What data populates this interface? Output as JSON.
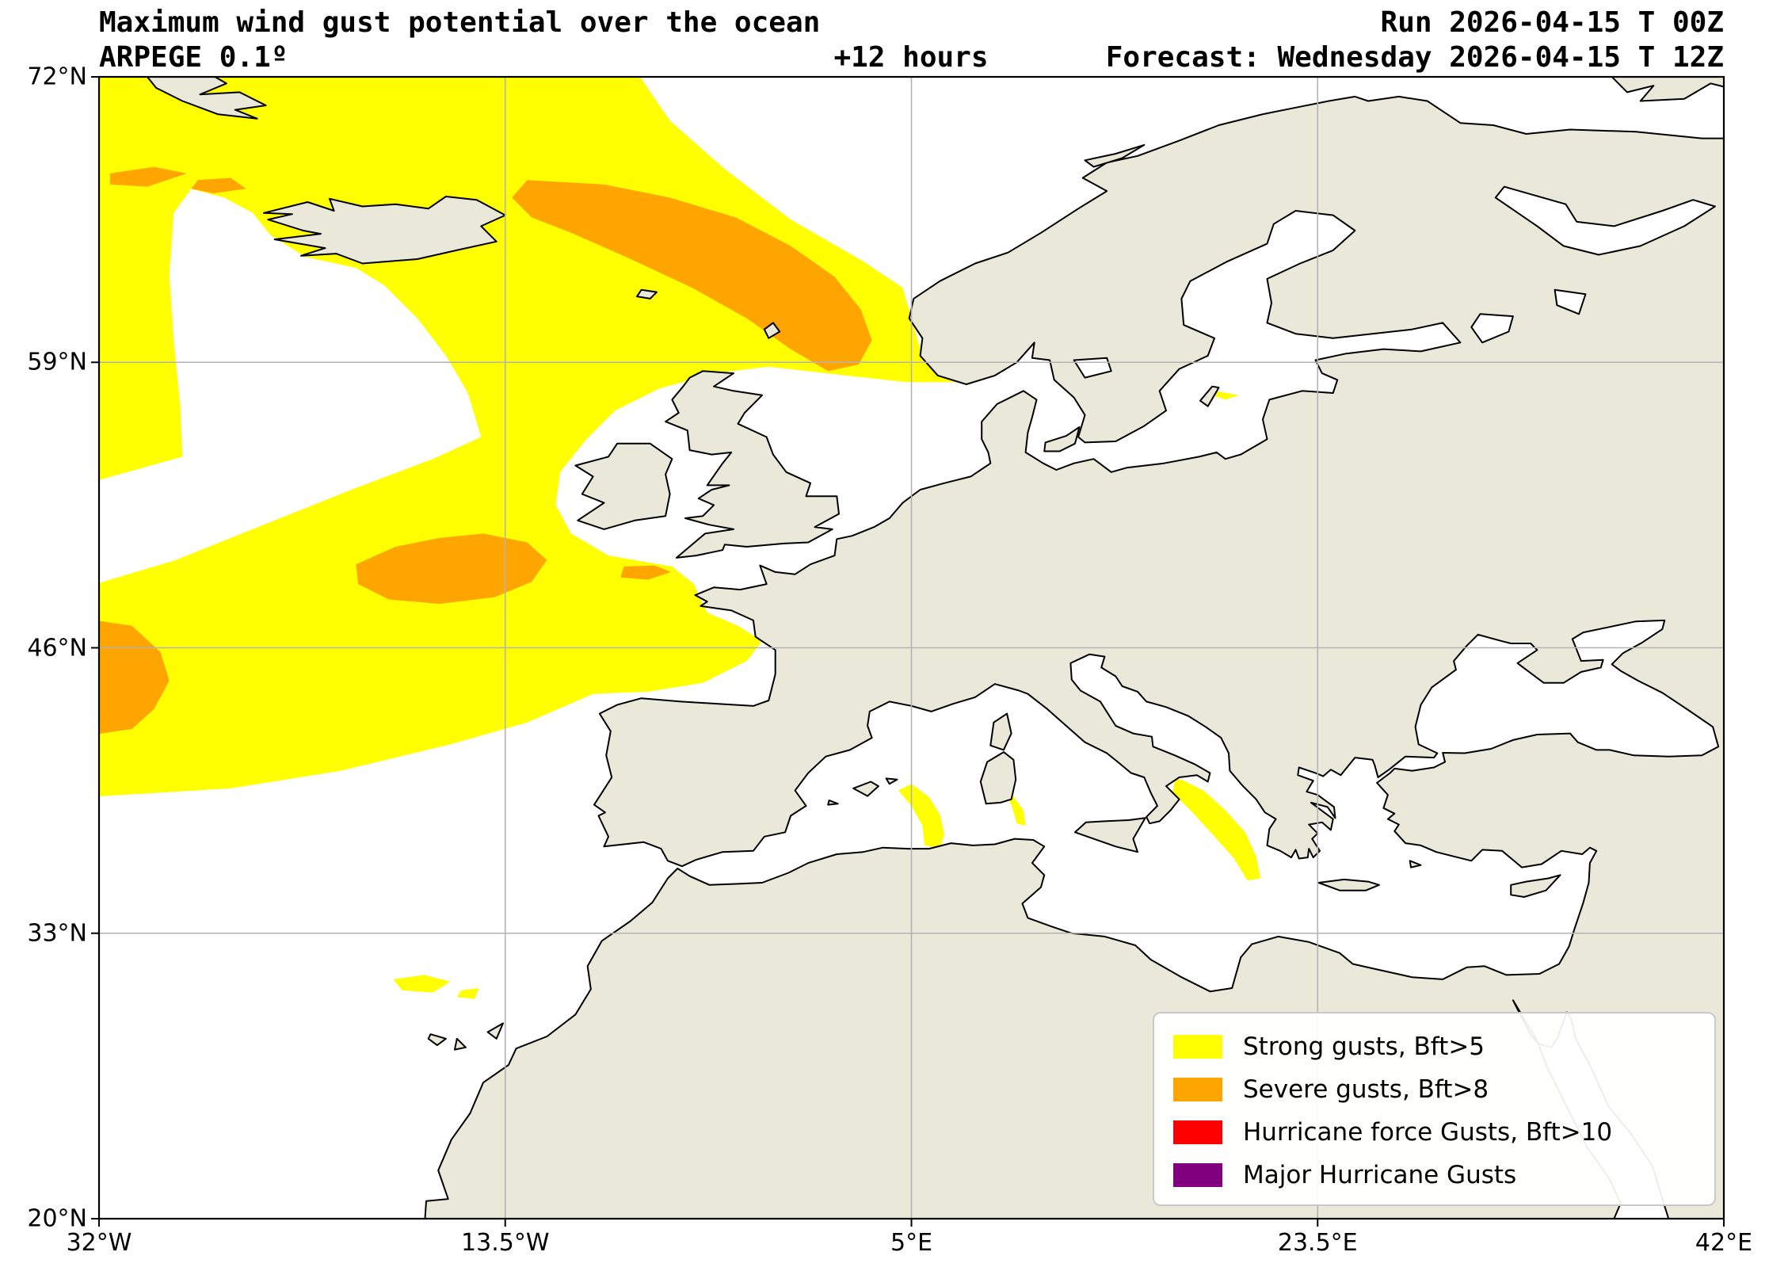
{
  "header": {
    "title": "Maximum wind gust potential over the ocean",
    "run_label": "Run 2026-04-15 T 00Z",
    "model": "ARPEGE 0.1º",
    "lead_time": "+12 hours",
    "forecast_label": "Forecast: Wednesday 2026-04-15 T 12Z"
  },
  "axes": {
    "x_ticks": [
      "32°W",
      "13.5°W",
      "5°E",
      "23.5°E",
      "42°E"
    ],
    "y_ticks": [
      "72°N",
      "59°N",
      "46°N",
      "33°N",
      "20°N"
    ],
    "x_tick_lons": [
      -32,
      -13.5,
      5,
      23.5,
      42
    ],
    "y_tick_lats": [
      72,
      59,
      46,
      33,
      20
    ]
  },
  "legend": {
    "items": [
      {
        "label": "Strong gusts, Bft>5",
        "color": "#ffff00"
      },
      {
        "label": "Severe gusts, Bft>8",
        "color": "#ffa500"
      },
      {
        "label": "Hurricane force Gusts, Bft>10",
        "color": "#ff0000"
      },
      {
        "label": "Major Hurricane Gusts",
        "color": "#800080"
      }
    ]
  },
  "map": {
    "extent": {
      "lon_min": -32,
      "lon_max": 42,
      "lat_min": 20,
      "lat_max": 72
    },
    "colors": {
      "land": "#e9e8d9",
      "ocean": "#ffffff",
      "coastline": "#000000",
      "grid": "#b3b3b3",
      "strong_gusts": "#ffff00",
      "severe_gusts": "#ffa500",
      "hurricane_gusts": "#ff0000",
      "major_hurricane_gusts": "#800080"
    }
  }
}
